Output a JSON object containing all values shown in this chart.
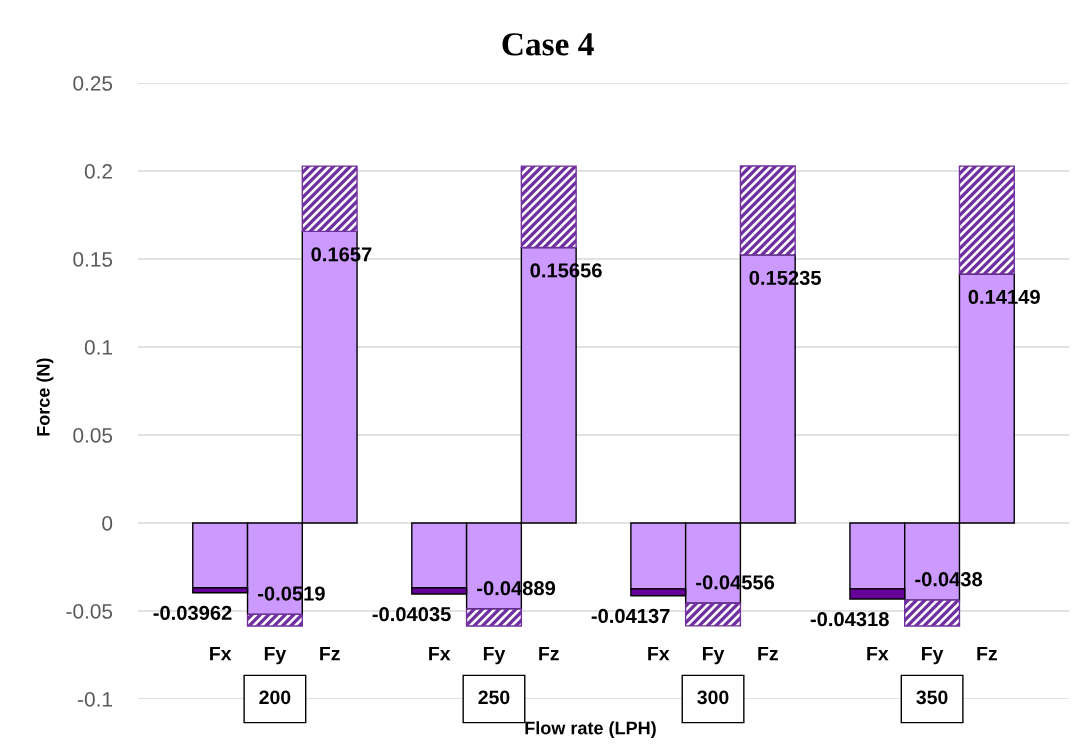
{
  "chart_data": {
    "type": "bar",
    "title": "Case 4",
    "xlabel": "Flow rate (LPH)",
    "ylabel": "Force (N)",
    "categories": [
      null,
      "Fx",
      "Fy",
      "Fz",
      null,
      "Fx",
      "Fy",
      "Fz",
      null,
      "Fx",
      "Fy",
      "Fz",
      null,
      "Fx",
      "Fy",
      "Fz",
      null
    ],
    "series": [
      {
        "color": "#cc99ff",
        "values": [
          null,
          -0.0368,
          -0.0519,
          0.1657,
          null,
          -0.0368,
          -0.04889,
          0.15656,
          null,
          -0.0374,
          -0.04556,
          0.15235,
          null,
          -0.0374,
          -0.0438,
          0.14149,
          null
        ],
        "value_labels": [
          null,
          null,
          "-0.0519",
          "0.1657",
          null,
          null,
          "-0.04889",
          "0.15656",
          null,
          null,
          "-0.04556",
          "0.15235",
          null,
          null,
          "-0.0438",
          "0.14149",
          null
        ]
      },
      {
        "color": "#660099",
        "values": [
          null,
          -0.00282,
          null,
          null,
          null,
          -0.00355,
          null,
          null,
          null,
          -0.00397,
          null,
          null,
          null,
          -0.00578,
          null,
          null,
          null
        ]
      },
      {
        "color": "#7030a0",
        "values": [
          null,
          null,
          -0.0066,
          0.0371,
          null,
          null,
          -0.0096,
          0.0462,
          null,
          null,
          -0.0129,
          0.0505,
          null,
          null,
          -0.0147,
          0.0613,
          null
        ]
      }
    ],
    "stacked": true,
    "totals": [
      null,
      "-0.03962",
      null,
      null,
      null,
      "-0.04035",
      null,
      null,
      null,
      "-0.04137",
      null,
      null,
      null,
      "-0.04318",
      null,
      null,
      null
    ],
    "annotations": [
      "200",
      "250",
      "300",
      "350"
    ],
    "ylim": [
      -0.1,
      0.25
    ],
    "yticks": [
      -0.1,
      -0.05,
      0,
      0.05,
      0.1,
      0.15,
      0.2,
      0.25
    ],
    "grid": "y"
  }
}
